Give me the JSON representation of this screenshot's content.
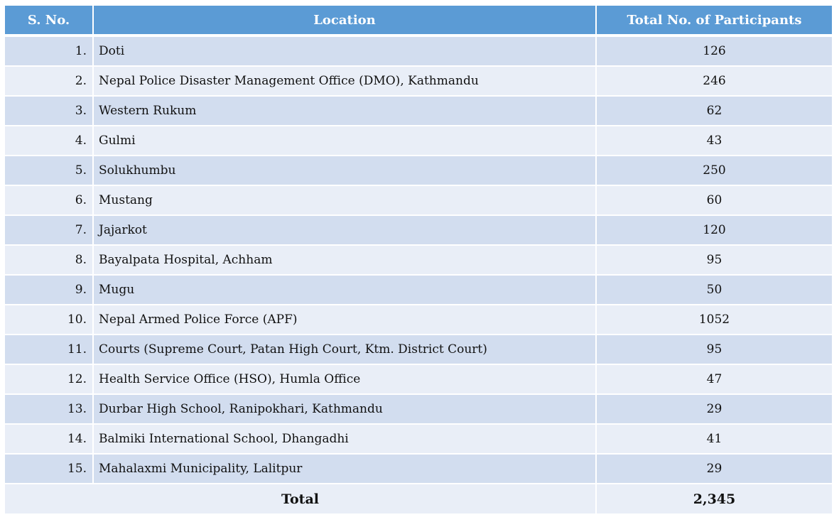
{
  "headers": {
    "sno": "S. No.",
    "location": "Location",
    "total": "Total No. of Participants"
  },
  "rows": [
    {
      "sno": "1.",
      "location": "Doti",
      "participants": "126"
    },
    {
      "sno": "2.",
      "location": "Nepal Police Disaster Management Office (DMO), Kathmandu",
      "participants": "246"
    },
    {
      "sno": "3.",
      "location": "Western Rukum",
      "participants": "62"
    },
    {
      "sno": "4.",
      "location": "Gulmi",
      "participants": "43"
    },
    {
      "sno": "5.",
      "location": "Solukhumbu",
      "participants": "250"
    },
    {
      "sno": "6.",
      "location": "Mustang",
      "participants": "60"
    },
    {
      "sno": "7.",
      "location": "Jajarkot",
      "participants": "120"
    },
    {
      "sno": "8.",
      "location": "Bayalpata Hospital, Achham",
      "participants": "95"
    },
    {
      "sno": "9.",
      "location": "Mugu",
      "participants": "50"
    },
    {
      "sno": "10.",
      "location": "Nepal Armed Police Force (APF)",
      "participants": "1052"
    },
    {
      "sno": "11.",
      "location": "Courts (Supreme Court, Patan High Court, Ktm. District Court)",
      "participants": "95"
    },
    {
      "sno": "12.",
      "location": "Health Service Office (HSO), Humla Office",
      "participants": "47"
    },
    {
      "sno": "13.",
      "location": "Durbar High School, Ranipokhari, Kathmandu",
      "participants": "29"
    },
    {
      "sno": "14.",
      "location": "Balmiki International School, Dhangadhi",
      "participants": "41"
    },
    {
      "sno": "15.",
      "location": "Mahalaxmi Municipality, Lalitpur",
      "participants": "29"
    }
  ],
  "footer": {
    "label": "Total",
    "value": "2,345"
  },
  "colors": {
    "header": "#5b9bd5",
    "row_odd": "#d2ddef",
    "row_even": "#e9eef7"
  }
}
